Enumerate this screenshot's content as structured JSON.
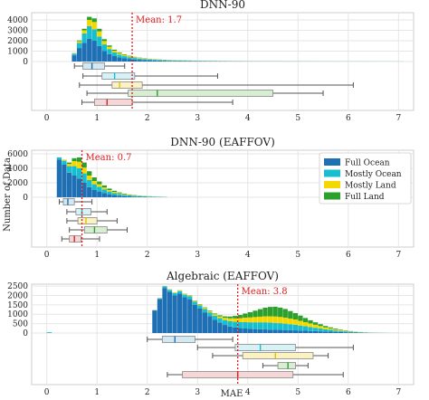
{
  "chart_data": [
    {
      "type": "bar",
      "subtype": "stacked-histogram-with-boxplots",
      "title": "DNN-90",
      "mean_label": "Mean: 1.7",
      "mean": 1.7,
      "xlim": [
        -0.3,
        7.3
      ],
      "ylim": [
        0,
        4700
      ],
      "yticks": [
        0,
        1000,
        2000,
        3000,
        4000
      ],
      "xticks": [
        0,
        1,
        2,
        3,
        4,
        5,
        6,
        7
      ],
      "bin_width": 0.1,
      "bin_start": 0.5,
      "hist": {
        "Full Ocean": [
          600,
          1300,
          1800,
          2200,
          2000,
          1500,
          1000,
          720,
          520,
          400,
          310,
          250,
          200,
          165,
          140,
          120,
          100,
          85,
          75,
          65,
          58,
          52,
          47,
          42,
          38,
          35,
          32,
          30,
          28,
          26,
          24,
          22,
          21,
          20,
          19,
          18,
          17,
          16,
          15,
          15,
          14,
          13,
          12,
          12,
          11,
          11,
          10,
          10,
          9,
          9,
          8,
          8,
          8,
          7,
          7,
          7,
          6,
          6,
          6,
          5,
          5,
          5,
          5,
          4,
          4,
          4
        ],
        "Mostly Ocean": [
          150,
          500,
          900,
          1200,
          1100,
          900,
          650,
          480,
          350,
          270,
          210,
          170,
          140,
          115,
          95,
          80,
          70,
          60,
          52,
          46,
          41,
          37,
          33,
          30,
          27,
          25,
          23,
          21,
          19,
          18,
          17,
          16,
          15,
          14,
          13,
          12,
          12,
          11,
          11,
          10,
          10,
          9,
          9,
          8,
          8,
          8,
          7,
          7,
          7,
          6,
          6,
          6,
          6,
          5,
          5,
          5,
          5,
          4,
          4,
          4,
          4,
          4,
          3,
          3,
          3,
          3
        ],
        "Mostly Land": [
          40,
          150,
          300,
          600,
          700,
          500,
          320,
          220,
          170,
          130,
          105,
          85,
          70,
          58,
          48,
          40,
          34,
          30,
          26,
          23,
          20,
          18,
          16,
          15,
          14,
          13,
          12,
          11,
          10,
          10,
          9,
          9,
          8,
          8,
          7,
          7,
          7,
          6,
          6,
          6,
          5,
          5,
          5,
          5,
          4,
          4,
          4,
          4,
          4,
          3,
          3,
          3,
          3,
          3,
          3,
          3,
          2,
          2,
          2,
          2,
          2,
          2,
          2,
          2,
          2,
          2
        ],
        "Full Land": [
          20,
          80,
          150,
          300,
          350,
          250,
          180,
          130,
          100,
          80,
          65,
          52,
          43,
          36,
          30,
          26,
          23,
          20,
          18,
          16,
          15,
          14,
          13,
          12,
          11,
          11,
          10,
          10,
          9,
          9,
          9,
          8,
          8,
          8,
          7,
          7,
          7,
          7,
          6,
          6,
          6,
          6,
          6,
          5,
          5,
          5,
          5,
          5,
          5,
          5,
          4,
          4,
          4,
          4,
          4,
          4,
          4,
          4,
          4,
          4,
          4,
          4,
          4,
          4,
          4,
          4
        ]
      },
      "boxes": {
        "Full Ocean": {
          "whislo": 0.55,
          "q1": 0.72,
          "med": 0.9,
          "q3": 1.15,
          "whishi": 1.55
        },
        "Mostly Ocean": {
          "whislo": 0.72,
          "q1": 1.1,
          "med": 1.35,
          "q3": 1.75,
          "whishi": 3.4
        },
        "Mostly Land": {
          "whislo": 0.65,
          "q1": 1.3,
          "med": 1.45,
          "q3": 1.9,
          "whishi": 6.1
        },
        "Full Land": {
          "whislo": 0.8,
          "q1": 1.62,
          "med": 2.2,
          "q3": 4.5,
          "whishi": 5.5
        },
        "All": {
          "whislo": 0.7,
          "q1": 0.95,
          "med": 1.2,
          "q3": 1.7,
          "whishi": 3.7
        }
      }
    },
    {
      "type": "bar",
      "subtype": "stacked-histogram-with-boxplots",
      "title": "DNN-90 (EAFFOV)",
      "mean_label": "Mean: 0.7",
      "mean": 0.7,
      "xlim": [
        -0.3,
        7.3
      ],
      "ylim": [
        0,
        6500
      ],
      "yticks": [
        0,
        2000,
        4000,
        6000
      ],
      "xticks": [
        0,
        1,
        2,
        3,
        4,
        5,
        6,
        7
      ],
      "bin_width": 0.1,
      "bin_start": 0.2,
      "hist": {
        "Full Ocean": [
          5200,
          4500,
          3400,
          3000,
          2600,
          2000,
          1400,
          1000,
          800,
          600,
          420,
          300,
          220,
          160,
          120,
          90,
          70,
          55,
          45,
          35,
          28,
          22
        ],
        "Mostly Ocean": [
          300,
          500,
          900,
          1300,
          1400,
          1300,
          1000,
          800,
          650,
          500,
          380,
          300,
          230,
          180,
          140,
          110,
          85,
          70,
          55,
          45,
          35,
          25
        ],
        "Mostly Land": [
          20,
          100,
          300,
          700,
          900,
          800,
          600,
          450,
          350,
          260,
          200,
          150,
          110,
          85,
          65,
          50,
          38,
          30,
          24,
          18,
          14,
          10
        ],
        "Full Land": [
          10,
          60,
          200,
          400,
          600,
          700,
          600,
          500,
          380,
          280,
          200,
          150,
          110,
          80,
          60,
          45,
          35,
          26,
          20,
          15,
          11,
          8
        ]
      },
      "boxes": {
        "Full Ocean": {
          "whislo": 0.25,
          "q1": 0.33,
          "med": 0.42,
          "q3": 0.55,
          "whishi": 0.9
        },
        "Mostly Ocean": {
          "whislo": 0.4,
          "q1": 0.58,
          "med": 0.7,
          "q3": 0.88,
          "whishi": 1.2
        },
        "Mostly Land": {
          "whislo": 0.4,
          "q1": 0.62,
          "med": 0.78,
          "q3": 1.0,
          "whishi": 1.4
        },
        "Full Land": {
          "whislo": 0.45,
          "q1": 0.75,
          "med": 0.95,
          "q3": 1.2,
          "whishi": 1.6
        },
        "All": {
          "whislo": 0.3,
          "q1": 0.45,
          "med": 0.55,
          "q3": 0.68,
          "whishi": 1.05
        }
      }
    },
    {
      "type": "bar",
      "subtype": "stacked-histogram-with-boxplots",
      "title": "Algebraic (EAFFOV)",
      "mean_label": "Mean: 3.8",
      "mean": 3.8,
      "xlim": [
        -0.3,
        7.3
      ],
      "ylim": [
        0,
        2600
      ],
      "yticks": [
        0,
        500,
        1000,
        1500,
        2000,
        2500
      ],
      "xticks": [
        0,
        1,
        2,
        3,
        4,
        5,
        6,
        7
      ],
      "bin_width": 0.1,
      "bin_start": 2.1,
      "hist": {
        "Full Ocean": [
          1200,
          1800,
          2400,
          2200,
          2000,
          2100,
          1900,
          1800,
          1500,
          1300,
          1100,
          900,
          700,
          550,
          430,
          350,
          300,
          260,
          240,
          220,
          210,
          200,
          190,
          180,
          170,
          165,
          160,
          150,
          140,
          130,
          120,
          110,
          100,
          90,
          80,
          70,
          60,
          50,
          42,
          35,
          28,
          22,
          17,
          13,
          10,
          8,
          6,
          4,
          3
        ],
        "Mostly Ocean": [
          20,
          50,
          80,
          100,
          120,
          130,
          140,
          150,
          160,
          170,
          180,
          200,
          220,
          240,
          260,
          280,
          300,
          320,
          340,
          350,
          360,
          370,
          380,
          380,
          370,
          360,
          340,
          320,
          300,
          270,
          240,
          210,
          180,
          150,
          120,
          100,
          80,
          60,
          45,
          32,
          22,
          15,
          10,
          7,
          5,
          3,
          2,
          1,
          1
        ],
        "Mostly Land": [
          5,
          10,
          15,
          20,
          25,
          30,
          35,
          40,
          45,
          50,
          60,
          70,
          80,
          100,
          120,
          150,
          180,
          210,
          240,
          260,
          280,
          300,
          320,
          330,
          340,
          330,
          320,
          300,
          280,
          250,
          220,
          190,
          160,
          130,
          100,
          80,
          60,
          45,
          32,
          22,
          15,
          10,
          6,
          4,
          3,
          2,
          1,
          1,
          0
        ],
        "Full Land": [
          2,
          4,
          6,
          8,
          10,
          12,
          14,
          16,
          18,
          20,
          25,
          30,
          40,
          55,
          75,
          100,
          130,
          170,
          220,
          280,
          340,
          400,
          460,
          500,
          520,
          500,
          460,
          400,
          340,
          280,
          220,
          170,
          130,
          100,
          75,
          55,
          40,
          30,
          20,
          14,
          9,
          6,
          4,
          2,
          1,
          1,
          0,
          0,
          0
        ]
      },
      "extra_bar": {
        "x": 0.05,
        "value": 40
      },
      "boxes": {
        "Full Ocean": {
          "whislo": 2.0,
          "q1": 2.3,
          "med": 2.55,
          "q3": 2.95,
          "whishi": 3.7
        },
        "Mostly Ocean": {
          "whislo": 3.0,
          "q1": 3.75,
          "med": 4.25,
          "q3": 4.95,
          "whishi": 6.1
        },
        "Mostly Land": {
          "whislo": 3.3,
          "q1": 3.9,
          "med": 4.55,
          "q3": 5.3,
          "whishi": 5.6
        },
        "Full Land": {
          "whislo": 4.3,
          "q1": 4.6,
          "med": 4.8,
          "q3": 4.95,
          "whishi": 5.2
        },
        "All": {
          "whislo": 2.4,
          "q1": 2.7,
          "med": 3.8,
          "q3": 4.9,
          "whishi": 5.9
        }
      }
    }
  ],
  "legend": {
    "entries": [
      "Full Ocean",
      "Mostly Ocean",
      "Mostly Land",
      "Full Land"
    ],
    "placement": "upper-right of middle panel"
  },
  "colors": {
    "Full Ocean": "#1f6fb5",
    "Mostly Ocean": "#17becf",
    "Mostly Land": "#f5d800",
    "Full Land": "#2ca02c",
    "box_Full Ocean": "#d2e8f3",
    "box_Mostly Ocean": "#d6f2f6",
    "box_Mostly Land": "#fbf2c4",
    "box_Full Land": "#d8eed2",
    "box_All": "#f6d6d6",
    "med_Full Ocean": "#1f6fb5",
    "med_Mostly Ocean": "#17becf",
    "med_Mostly Land": "#e0c200",
    "med_Full Land": "#2ca02c",
    "med_All": "#d62728",
    "mean": "#e31a1c"
  },
  "ylabel": "Number of Data",
  "xlabel": "MAE"
}
